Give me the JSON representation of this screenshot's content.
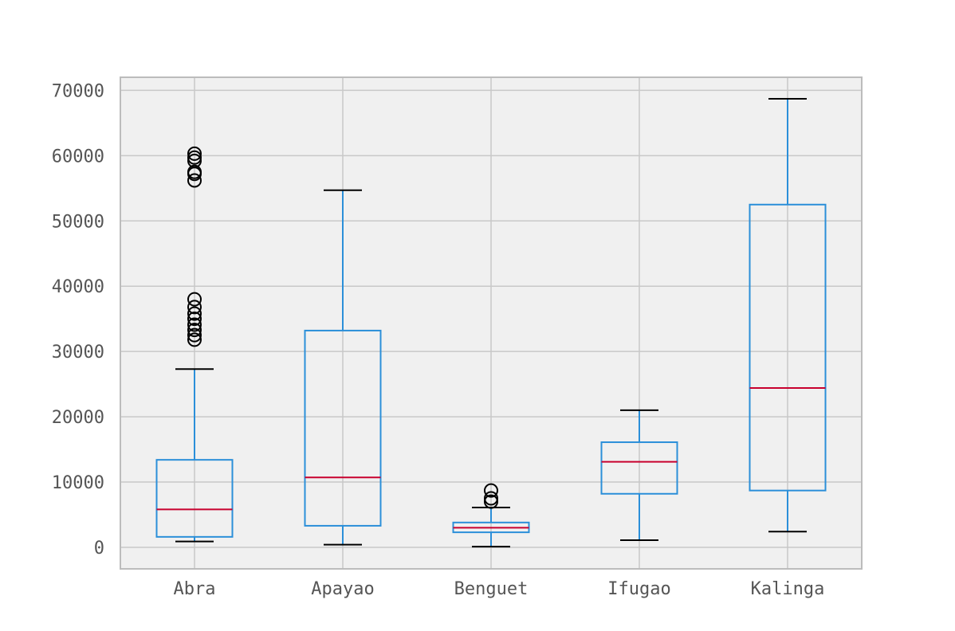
{
  "chart_data": {
    "type": "box",
    "title": "",
    "xlabel": "",
    "ylabel": "",
    "ylim": [
      -3300,
      72000
    ],
    "yticks": [
      0,
      10000,
      20000,
      30000,
      40000,
      50000,
      60000,
      70000
    ],
    "ytick_labels": [
      "0",
      "10000",
      "20000",
      "30000",
      "40000",
      "50000",
      "60000",
      "70000"
    ],
    "grid": true,
    "categories": [
      "Abra",
      "Apayao",
      "Benguet",
      "Ifugao",
      "Kalinga"
    ],
    "boxes": [
      {
        "category": "Abra",
        "whisker_low": 900,
        "q1": 1600,
        "median": 5800,
        "q3": 13400,
        "whisker_high": 27300,
        "outliers": [
          31800,
          32500,
          33300,
          34100,
          35000,
          35800,
          36800,
          38000,
          56200,
          57200,
          57500,
          59200,
          59700,
          60300
        ]
      },
      {
        "category": "Apayao",
        "whisker_low": 400,
        "q1": 3300,
        "median": 10700,
        "q3": 33200,
        "whisker_high": 54700,
        "outliers": []
      },
      {
        "category": "Benguet",
        "whisker_low": 100,
        "q1": 2300,
        "median": 3000,
        "q3": 3800,
        "whisker_high": 6100,
        "outliers": [
          7000,
          7500,
          8700
        ]
      },
      {
        "category": "Ifugao",
        "whisker_low": 1100,
        "q1": 8200,
        "median": 13100,
        "q3": 16100,
        "whisker_high": 21000,
        "outliers": []
      },
      {
        "category": "Kalinga",
        "whisker_low": 2400,
        "q1": 8700,
        "median": 24400,
        "q3": 52500,
        "whisker_high": 68700,
        "outliers": []
      }
    ],
    "colors": {
      "box": "#2b8fd9",
      "median": "#c8002e",
      "cap": "#000000",
      "outlier": "#000000",
      "grid": "#c8c8c8",
      "plot_bg": "#f0f0f0",
      "frame": "#bcbcbc"
    }
  }
}
